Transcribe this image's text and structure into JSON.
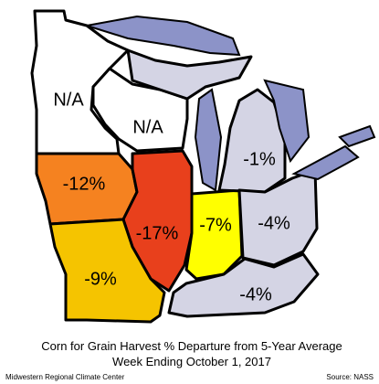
{
  "title": "Corn for Grain Harvest % Departure from 5-Year Average",
  "subtitle": "Week Ending October 1, 2017",
  "footer_left": "Midwestern Regional Climate Center",
  "footer_right": "Source: NASS",
  "water_color": "#8c93c8",
  "regions": [
    {
      "label": "N/A",
      "color": "#ffffff"
    },
    {
      "label": "N/A",
      "color": "#ffffff"
    },
    {
      "label": "-12%",
      "color": "#f58220"
    },
    {
      "label": "-17%",
      "color": "#e8401c"
    },
    {
      "label": "-9%",
      "color": "#f5c400"
    },
    {
      "label": "-7%",
      "color": "#ffff00"
    },
    {
      "label": "-1%",
      "color": "#d4d4e4"
    },
    {
      "label": "-4%",
      "color": "#d4d4e4"
    },
    {
      "label": "-4%",
      "color": "#d4d4e4"
    },
    {
      "label": null,
      "color": "#d4d4e4"
    }
  ]
}
